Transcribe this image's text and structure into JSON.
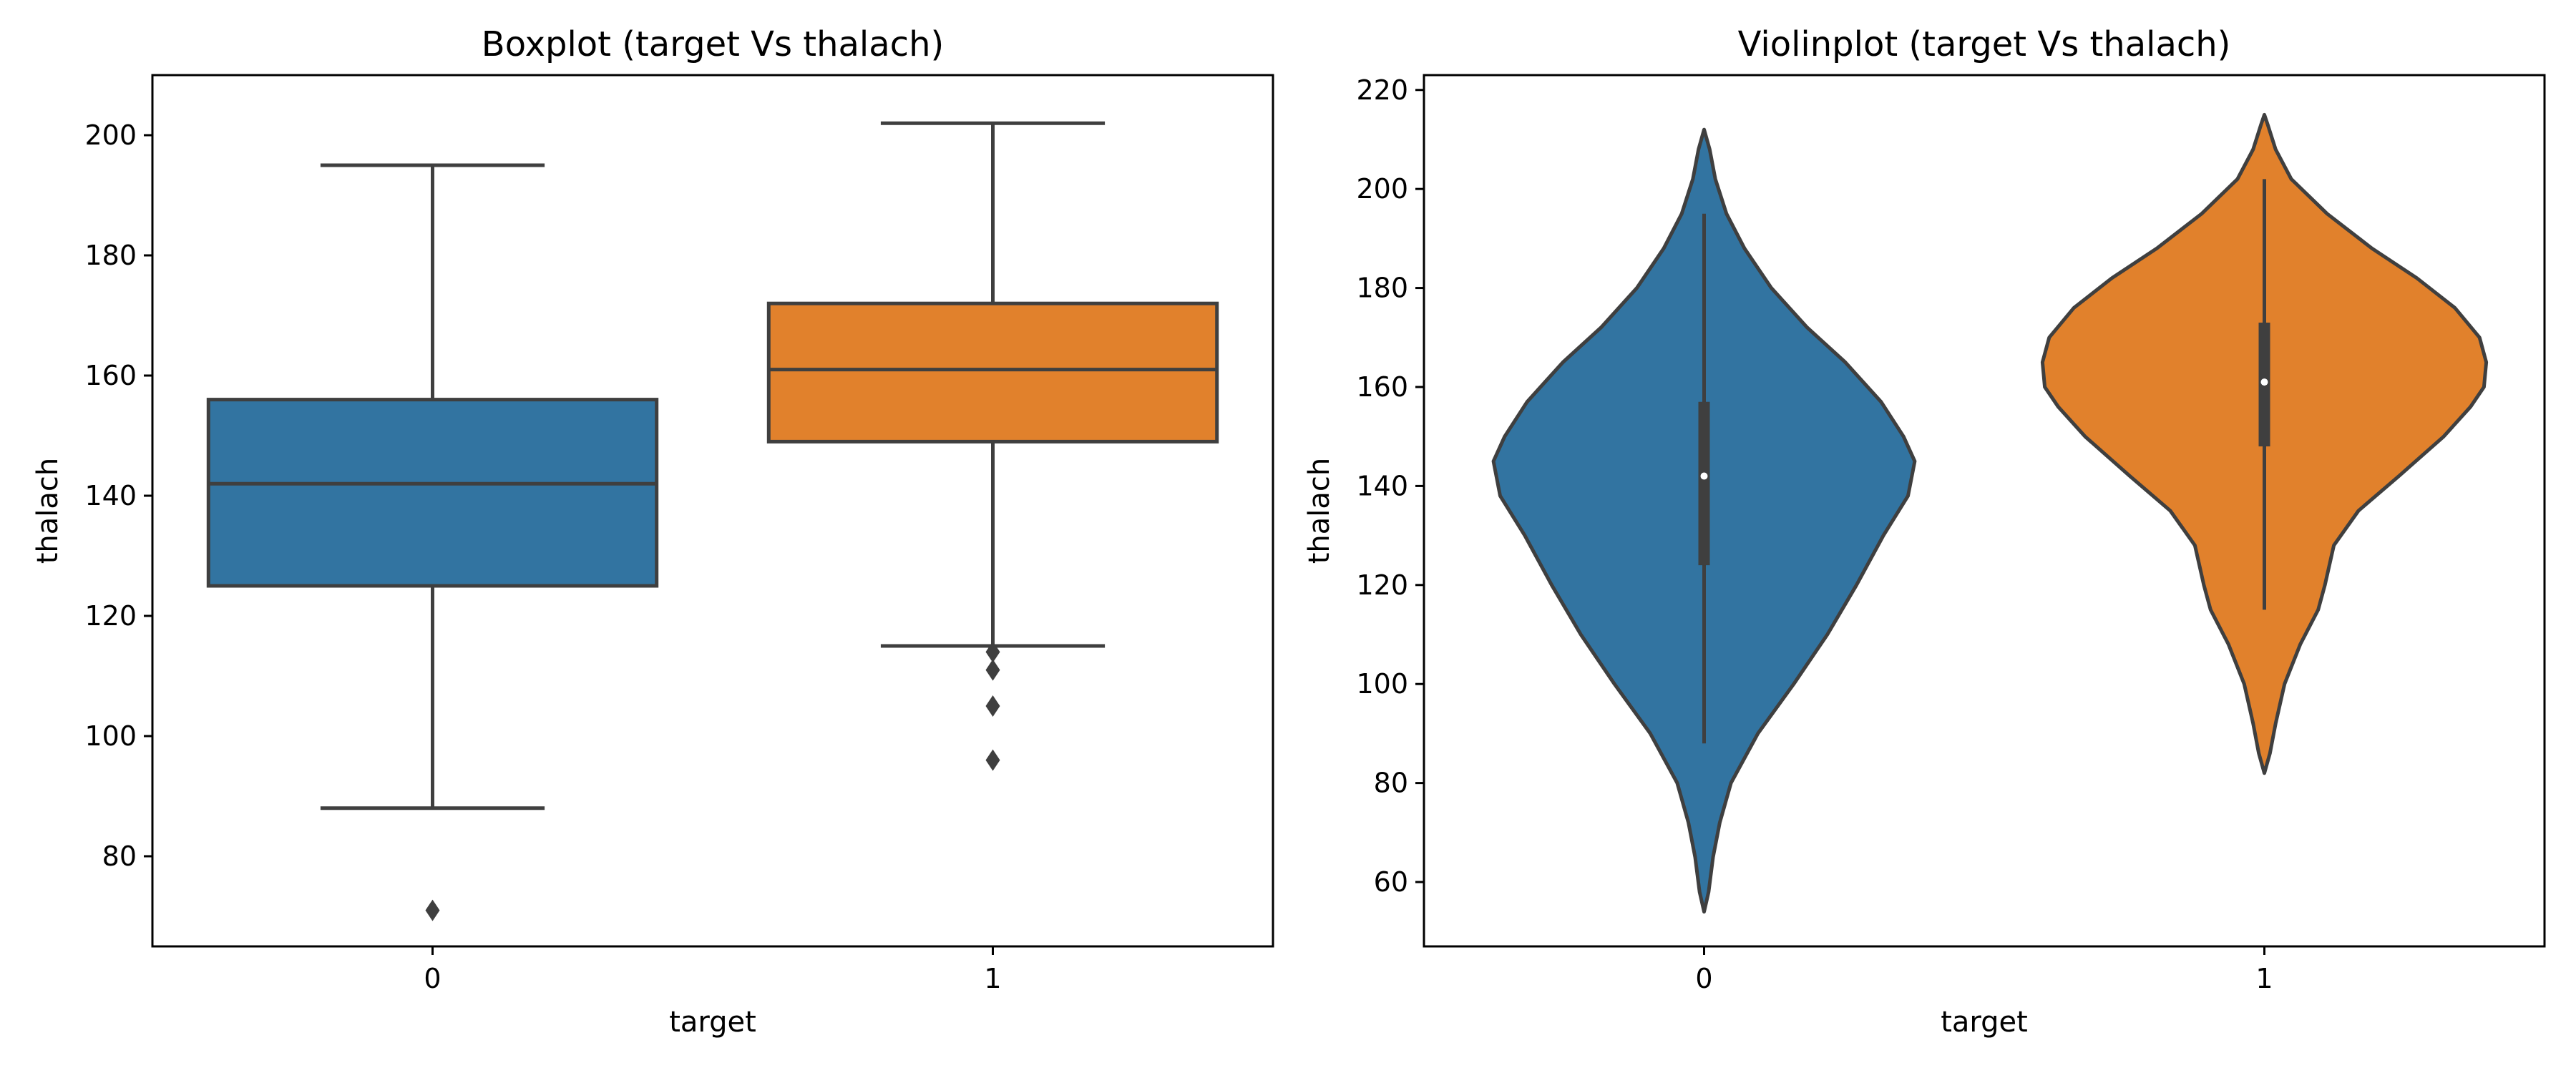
{
  "chart_data": [
    {
      "type": "boxplot",
      "title": "Boxplot (target Vs thalach)",
      "xlabel": "target",
      "ylabel": "thalach",
      "categories": [
        "0",
        "1"
      ],
      "ylim": [
        65,
        210
      ],
      "yticks": [
        80,
        100,
        120,
        140,
        160,
        180,
        200
      ],
      "grid": false,
      "line_color": "#3f3f3f",
      "series": [
        {
          "category": "0",
          "color": "#3274a1",
          "whisker_low": 88,
          "q1": 125,
          "median": 142,
          "q3": 156,
          "whisker_high": 195,
          "outliers": [
            71
          ]
        },
        {
          "category": "1",
          "color": "#e1812c",
          "whisker_low": 115,
          "q1": 149,
          "median": 161,
          "q3": 172,
          "whisker_high": 202,
          "outliers": [
            96,
            105,
            111,
            114
          ]
        }
      ]
    },
    {
      "type": "violin",
      "title": "Violinplot (target Vs thalach)",
      "xlabel": "target",
      "ylabel": "thalach",
      "categories": [
        "0",
        "1"
      ],
      "ylim": [
        47,
        223
      ],
      "yticks": [
        60,
        80,
        100,
        120,
        140,
        160,
        180,
        200,
        220
      ],
      "grid": false,
      "line_color": "#3f3f3f",
      "series": [
        {
          "category": "0",
          "color": "#3274a1",
          "min": 88,
          "q1": 124,
          "median": 142,
          "q3": 157,
          "max": 195,
          "density": [
            [
              54,
              0
            ],
            [
              58,
              0.02
            ],
            [
              65,
              0.04
            ],
            [
              72,
              0.07
            ],
            [
              80,
              0.12
            ],
            [
              90,
              0.24
            ],
            [
              100,
              0.4
            ],
            [
              110,
              0.55
            ],
            [
              120,
              0.68
            ],
            [
              130,
              0.8
            ],
            [
              138,
              0.91
            ],
            [
              145,
              0.94
            ],
            [
              150,
              0.89
            ],
            [
              157,
              0.79
            ],
            [
              165,
              0.63
            ],
            [
              172,
              0.46
            ],
            [
              180,
              0.3
            ],
            [
              188,
              0.18
            ],
            [
              195,
              0.1
            ],
            [
              202,
              0.05
            ],
            [
              208,
              0.025
            ],
            [
              212,
              0
            ]
          ]
        },
        {
          "category": "1",
          "color": "#e1812c",
          "min": 115,
          "q1": 148,
          "median": 161,
          "q3": 173,
          "max": 202,
          "density": [
            [
              82,
              0
            ],
            [
              86,
              0.025
            ],
            [
              92,
              0.05
            ],
            [
              100,
              0.09
            ],
            [
              108,
              0.16
            ],
            [
              115,
              0.24
            ],
            [
              120,
              0.27
            ],
            [
              128,
              0.31
            ],
            [
              135,
              0.42
            ],
            [
              142,
              0.6
            ],
            [
              150,
              0.8
            ],
            [
              156,
              0.92
            ],
            [
              160,
              0.98
            ],
            [
              165,
              0.99
            ],
            [
              170,
              0.96
            ],
            [
              176,
              0.85
            ],
            [
              182,
              0.68
            ],
            [
              188,
              0.48
            ],
            [
              195,
              0.28
            ],
            [
              202,
              0.12
            ],
            [
              208,
              0.05
            ],
            [
              213,
              0.015
            ],
            [
              215,
              0
            ]
          ]
        }
      ]
    }
  ]
}
